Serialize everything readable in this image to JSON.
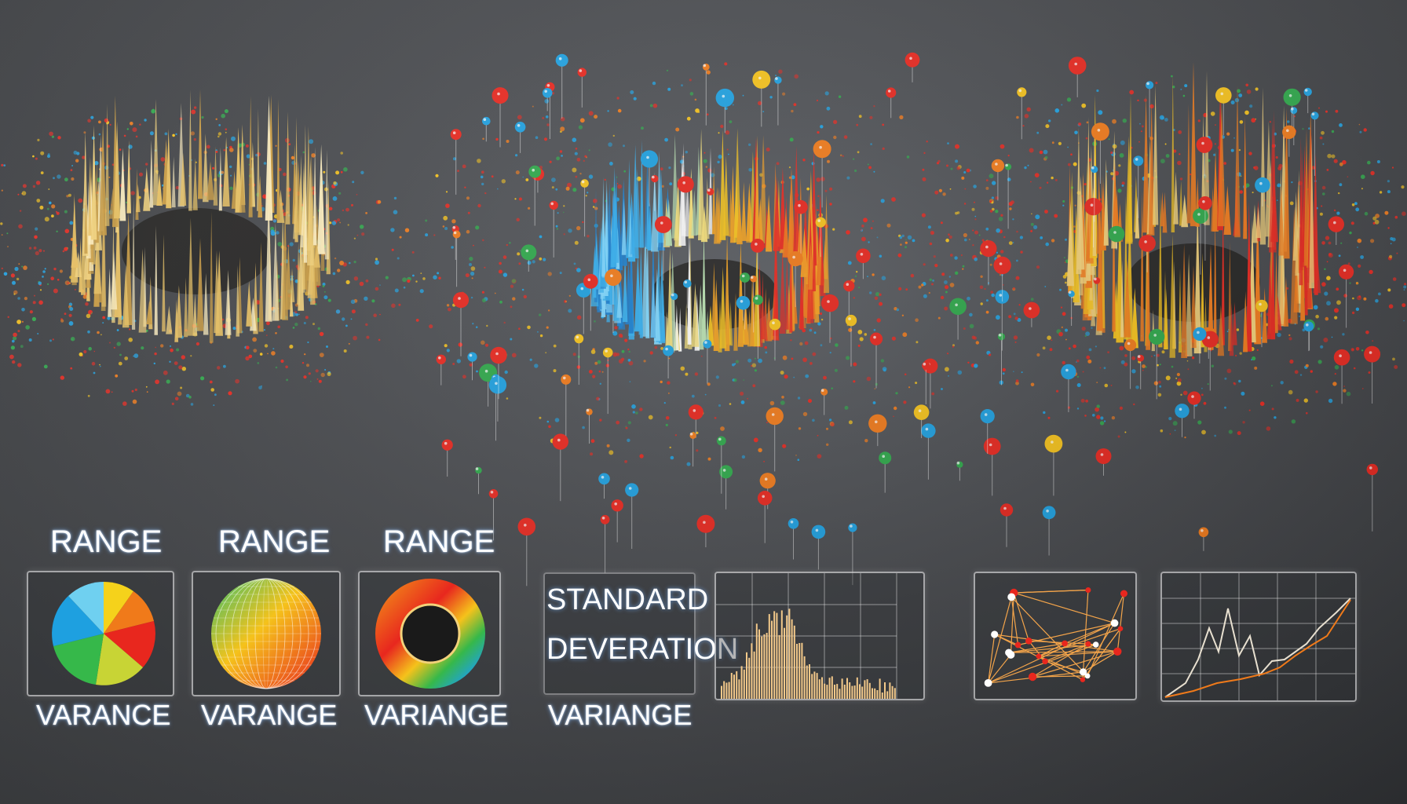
{
  "labels": {
    "range_1": "RANGE",
    "range_2": "RANGE",
    "range_3": "RANGE",
    "variance_1": "VARANCE",
    "variance_2": "VARANGE",
    "variance_3": "VARIANGE",
    "variance_4": "VARIANGE",
    "standard": "STANDARD",
    "deveration": "DEVERATION"
  },
  "colors": {
    "red": "#e8271e",
    "orange": "#f07a1a",
    "yellow": "#f5c21b",
    "blue": "#1ea0e0",
    "green": "#2ea84a",
    "gold": "#f3d27a"
  },
  "icons": {
    "pie": "pie-chart-icon",
    "sphere": "mesh-sphere-icon",
    "donut": "donut-ring-icon",
    "histogram": "histogram-icon",
    "network": "network-graph-icon",
    "line": "line-chart-icon"
  }
}
